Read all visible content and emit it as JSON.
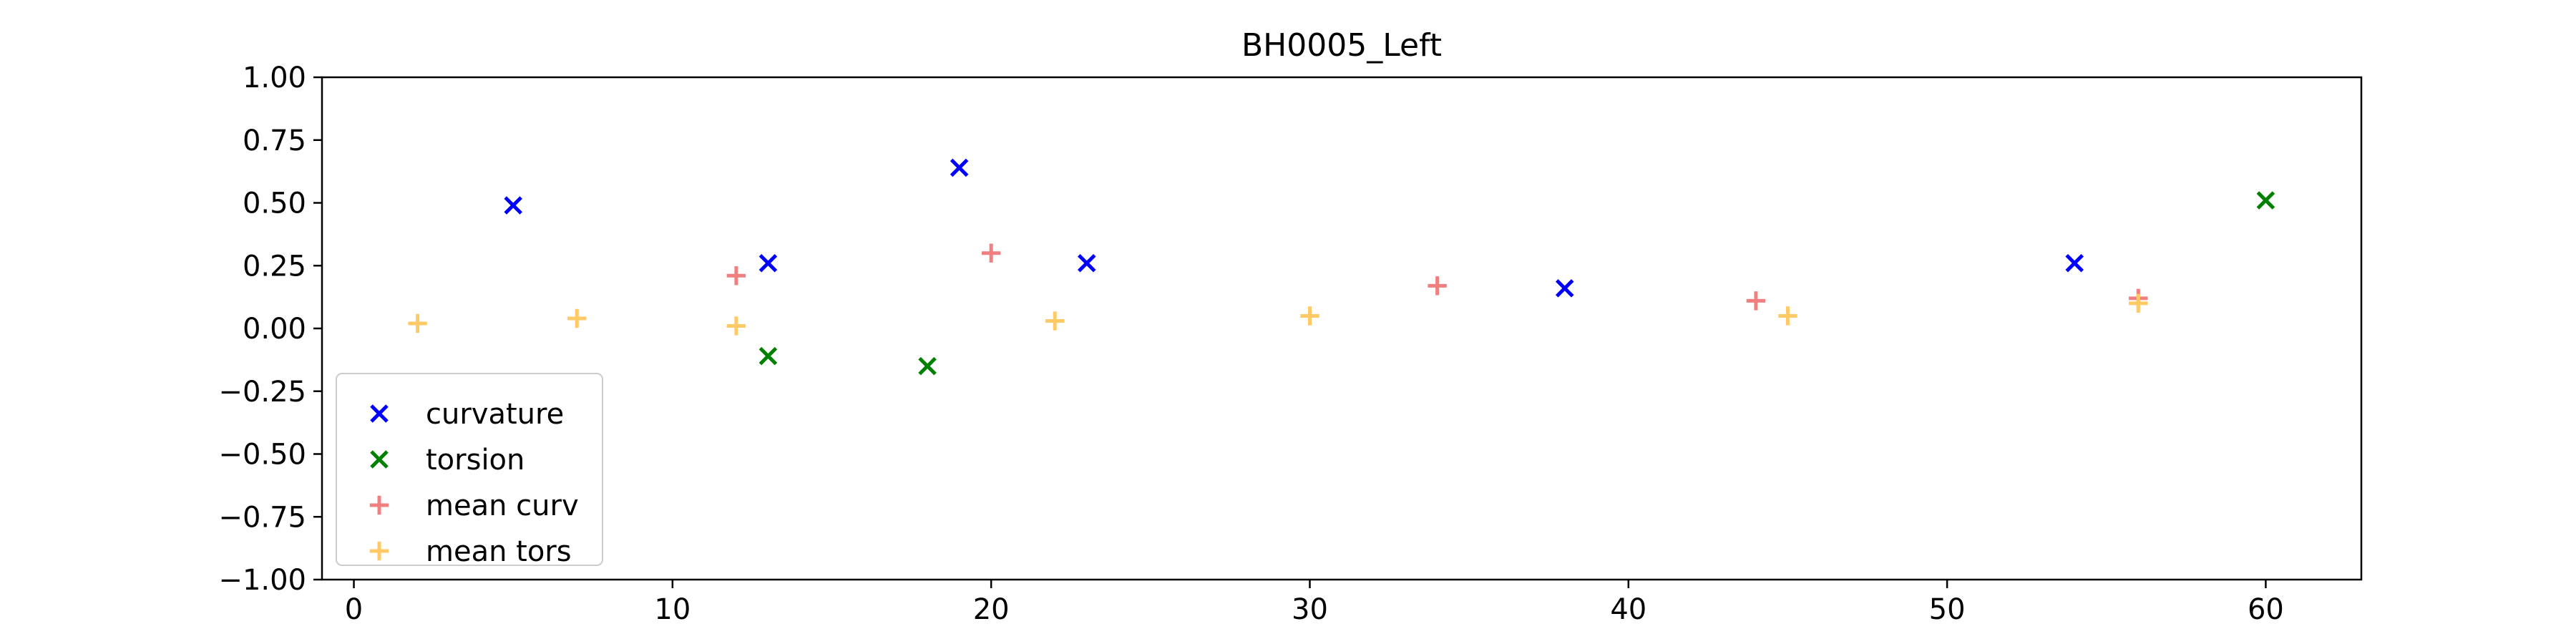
{
  "chart_data": {
    "type": "scatter",
    "title": "BH0005_Left",
    "xlabel": "",
    "ylabel": "",
    "xlim": [
      -1,
      63
    ],
    "ylim": [
      -1.0,
      1.0
    ],
    "x_ticks": [
      0,
      10,
      20,
      30,
      40,
      50,
      60
    ],
    "x_tick_labels": [
      "0",
      "10",
      "20",
      "30",
      "40",
      "50",
      "60"
    ],
    "y_ticks": [
      1.0,
      0.75,
      0.5,
      0.25,
      0.0,
      -0.25,
      -0.5,
      -0.75,
      -1.0
    ],
    "y_tick_labels": [
      "1.00",
      "0.75",
      "0.50",
      "0.25",
      "0.00",
      "−0.25",
      "−0.50",
      "−0.75",
      "−1.00"
    ],
    "grid": false,
    "legend_position": "lower-left",
    "series": [
      {
        "name": "curvature",
        "marker": "x",
        "color": "#0000ff",
        "points": [
          [
            5,
            0.49
          ],
          [
            13,
            0.26
          ],
          [
            19,
            0.64
          ],
          [
            23,
            0.26
          ],
          [
            38,
            0.16
          ],
          [
            54,
            0.26
          ]
        ]
      },
      {
        "name": "torsion",
        "marker": "x",
        "color": "#008000",
        "points": [
          [
            13,
            -0.11
          ],
          [
            18,
            -0.15
          ],
          [
            60,
            0.51
          ]
        ]
      },
      {
        "name": "mean curv",
        "marker": "+",
        "color": "#f08080",
        "points": [
          [
            12,
            0.21
          ],
          [
            20,
            0.3
          ],
          [
            34,
            0.17
          ],
          [
            44,
            0.11
          ],
          [
            56,
            0.12
          ]
        ]
      },
      {
        "name": "mean tors",
        "marker": "+",
        "color": "#ffc966",
        "points": [
          [
            2,
            0.02
          ],
          [
            7,
            0.04
          ],
          [
            12,
            0.01
          ],
          [
            22,
            0.03
          ],
          [
            30,
            0.05
          ],
          [
            45,
            0.05
          ],
          [
            56,
            0.1
          ]
        ]
      }
    ]
  }
}
